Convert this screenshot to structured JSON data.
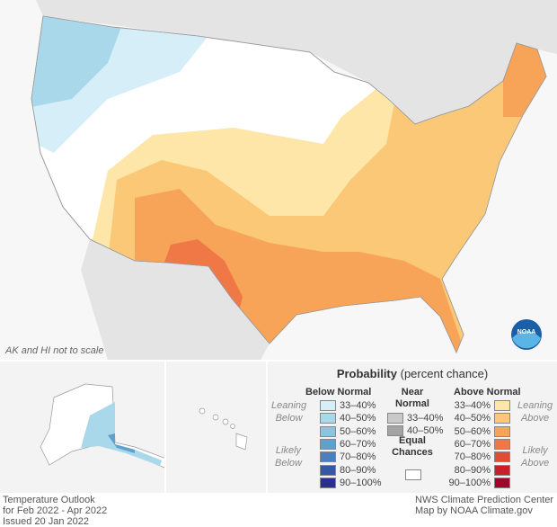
{
  "map_note": "AK and HI not to scale",
  "legend": {
    "title": "Probability",
    "title_suffix": "(percent chance)",
    "below_header": "Below Normal",
    "near_header_1": "Near",
    "near_header_2": "Normal",
    "above_header": "Above Normal",
    "leaning_below_1": "Leaning",
    "leaning_below_2": "Below",
    "likely_below_1": "Likely",
    "likely_below_2": "Below",
    "leaning_above_1": "Leaning",
    "leaning_above_2": "Above",
    "likely_above_1": "Likely",
    "likely_above_2": "Above",
    "equal_1": "Equal",
    "equal_2": "Chances",
    "below": [
      {
        "label": "33–40%",
        "color": "#d6eef7"
      },
      {
        "label": "40–50%",
        "color": "#a9d8ea"
      },
      {
        "label": "50–60%",
        "color": "#8cc3e0"
      },
      {
        "label": "60–70%",
        "color": "#5fa0cc"
      },
      {
        "label": "70–80%",
        "color": "#4a7fc1"
      },
      {
        "label": "80–90%",
        "color": "#3657a8"
      },
      {
        "label": "90–100%",
        "color": "#2b2f8f"
      }
    ],
    "near": [
      {
        "label": "33–40%",
        "color": "#c8c8c8"
      },
      {
        "label": "40–50%",
        "color": "#a3a3a3"
      }
    ],
    "above": [
      {
        "label": "33–40%",
        "color": "#fde6a8"
      },
      {
        "label": "40–50%",
        "color": "#fbc878"
      },
      {
        "label": "50–60%",
        "color": "#f8a458"
      },
      {
        "label": "60–70%",
        "color": "#f07846"
      },
      {
        "label": "70–80%",
        "color": "#e04d35"
      },
      {
        "label": "80–90%",
        "color": "#c62028"
      },
      {
        "label": "90–100%",
        "color": "#a0062a"
      }
    ]
  },
  "footer": {
    "left_1": "Temperature Outlook",
    "left_2": "for Feb 2022 - Apr 2022",
    "left_3": "Issued 20 Jan 2022",
    "right_1": "NWS Climate Prediction Center",
    "right_2": "Map by NOAA Climate.gov"
  },
  "logo_text": "NOAA"
}
